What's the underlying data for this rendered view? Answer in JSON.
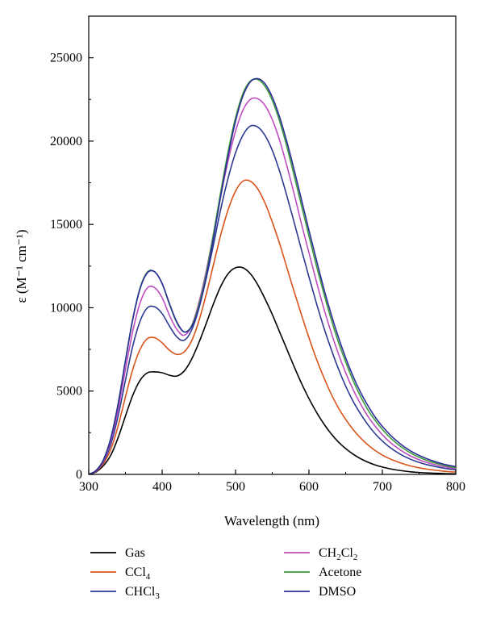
{
  "chart_data": {
    "type": "line",
    "xlabel": "Wavelength (nm)",
    "ylabel": "ε (M⁻¹ cm⁻¹)",
    "xlim": [
      300,
      800
    ],
    "ylim": [
      0,
      27500
    ],
    "xticks": [
      300,
      400,
      500,
      600,
      700,
      800
    ],
    "yticks": [
      0,
      5000,
      10000,
      15000,
      20000,
      25000
    ],
    "grid": false,
    "legend_position": "bottom",
    "x": [
      300,
      310,
      320,
      330,
      340,
      350,
      360,
      370,
      380,
      390,
      400,
      410,
      420,
      430,
      440,
      450,
      460,
      470,
      480,
      490,
      500,
      510,
      520,
      530,
      540,
      550,
      560,
      570,
      580,
      590,
      600,
      610,
      620,
      630,
      640,
      650,
      660,
      670,
      680,
      690,
      700,
      710,
      720,
      730,
      740,
      750,
      760,
      770,
      780,
      790,
      800
    ],
    "series": [
      {
        "name": "Gas",
        "color": "#000000",
        "values": [
          0,
          150,
          520,
          1150,
          2200,
          3500,
          4750,
          5650,
          6100,
          6150,
          6100,
          5950,
          5900,
          6200,
          6900,
          7900,
          9050,
          10250,
          11300,
          12050,
          12400,
          12400,
          12050,
          11400,
          10550,
          9600,
          8550,
          7500,
          6450,
          5450,
          4550,
          3750,
          3050,
          2450,
          1950,
          1550,
          1220,
          950,
          740,
          570,
          440,
          340,
          260,
          200,
          150,
          115,
          90,
          70,
          55,
          42,
          30
        ]
      },
      {
        "name": "CCl4",
        "color": "#d9541a",
        "values": [
          0,
          180,
          650,
          1500,
          2900,
          4650,
          6300,
          7500,
          8150,
          8200,
          7900,
          7450,
          7200,
          7350,
          8000,
          9200,
          10800,
          12600,
          14400,
          15900,
          17000,
          17600,
          17600,
          17150,
          16300,
          15150,
          13850,
          12400,
          10950,
          9550,
          8200,
          6950,
          5850,
          4850,
          4000,
          3300,
          2700,
          2200,
          1780,
          1440,
          1160,
          940,
          760,
          610,
          490,
          395,
          320,
          260,
          210,
          170,
          140
        ]
      },
      {
        "name": "CHCl3",
        "color": "#2c3a92",
        "values": [
          0,
          200,
          750,
          1800,
          3500,
          5650,
          7700,
          9200,
          10000,
          10050,
          9650,
          8900,
          8250,
          8050,
          8650,
          9950,
          11750,
          13800,
          15950,
          17800,
          19300,
          20350,
          20900,
          20850,
          20350,
          19450,
          18200,
          16700,
          15100,
          13450,
          11850,
          10300,
          8850,
          7550,
          6350,
          5300,
          4400,
          3650,
          3000,
          2450,
          2000,
          1630,
          1330,
          1080,
          880,
          720,
          590,
          490,
          400,
          330,
          270
        ]
      },
      {
        "name": "CH2Cl2",
        "color": "#c04ec0",
        "values": [
          0,
          220,
          800,
          2000,
          3900,
          6300,
          8600,
          10300,
          11200,
          11200,
          10600,
          9550,
          8700,
          8350,
          8900,
          10300,
          12200,
          14450,
          16750,
          18850,
          20600,
          21850,
          22500,
          22550,
          22150,
          21300,
          20050,
          18500,
          16800,
          15000,
          13300,
          11600,
          10000,
          8550,
          7250,
          6100,
          5100,
          4250,
          3500,
          2900,
          2380,
          1950,
          1600,
          1310,
          1070,
          880,
          720,
          600,
          490,
          410,
          340
        ]
      },
      {
        "name": "Acetone",
        "color": "#3c9a3c",
        "values": [
          0,
          240,
          880,
          2180,
          4250,
          6850,
          9350,
          11200,
          12150,
          12150,
          11450,
          10200,
          9100,
          8550,
          8900,
          10150,
          12050,
          14450,
          17000,
          19400,
          21400,
          22850,
          23600,
          23700,
          23300,
          22450,
          21200,
          19650,
          17900,
          16100,
          14300,
          12550,
          10900,
          9350,
          7950,
          6750,
          5650,
          4700,
          3900,
          3250,
          2700,
          2230,
          1840,
          1520,
          1250,
          1030,
          850,
          700,
          580,
          480,
          400
        ]
      },
      {
        "name": "DMSO",
        "color": "#2e2e9a",
        "values": [
          0,
          230,
          860,
          2150,
          4200,
          6800,
          9300,
          11150,
          12100,
          12150,
          11450,
          10250,
          9150,
          8550,
          8850,
          10000,
          11850,
          14200,
          16750,
          19150,
          21200,
          22700,
          23550,
          23750,
          23450,
          22650,
          21450,
          19950,
          18250,
          16450,
          14650,
          12900,
          11200,
          9650,
          8250,
          7000,
          5900,
          4950,
          4150,
          3450,
          2880,
          2400,
          1990,
          1650,
          1370,
          1140,
          950,
          790,
          660,
          550,
          470
        ]
      }
    ],
    "legend": [
      {
        "main": "Gas",
        "sub": "",
        "tail": ""
      },
      {
        "main": "CCl",
        "sub": "4",
        "tail": ""
      },
      {
        "main": "CHCl",
        "sub": "3",
        "tail": ""
      },
      {
        "main": "CH",
        "sub": "2",
        "tail": "Cl",
        "sub2": "2"
      },
      {
        "main": "Acetone",
        "sub": "",
        "tail": ""
      },
      {
        "main": "DMSO",
        "sub": "",
        "tail": ""
      }
    ]
  }
}
